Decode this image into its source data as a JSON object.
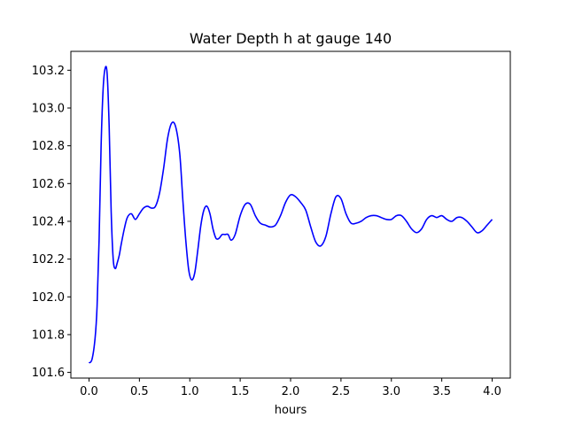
{
  "chart_data": {
    "type": "line",
    "title": "Water Depth h at gauge 140",
    "xlabel": "hours",
    "ylabel": "",
    "xlim": [
      -0.18,
      4.18
    ],
    "ylim": [
      101.57,
      103.3
    ],
    "xticks": [
      0.0,
      0.5,
      1.0,
      1.5,
      2.0,
      2.5,
      3.0,
      3.5,
      4.0
    ],
    "xtick_labels": [
      "0.0",
      "0.5",
      "1.0",
      "1.5",
      "2.0",
      "2.5",
      "3.0",
      "3.5",
      "4.0"
    ],
    "yticks": [
      101.6,
      101.8,
      102.0,
      102.2,
      102.4,
      102.6,
      102.8,
      103.0,
      103.2
    ],
    "ytick_labels": [
      "101.6",
      "101.8",
      "102.0",
      "102.2",
      "102.4",
      "102.6",
      "102.8",
      "103.0",
      "103.2"
    ],
    "grid": false,
    "series": [
      {
        "color": "#0000ff",
        "x": [
          0.0,
          0.03,
          0.06,
          0.08,
          0.1,
          0.12,
          0.14,
          0.16,
          0.18,
          0.2,
          0.22,
          0.24,
          0.26,
          0.28,
          0.3,
          0.32,
          0.35,
          0.38,
          0.42,
          0.46,
          0.5,
          0.54,
          0.58,
          0.62,
          0.66,
          0.7,
          0.74,
          0.78,
          0.82,
          0.86,
          0.9,
          0.93,
          0.96,
          0.99,
          1.02,
          1.05,
          1.08,
          1.11,
          1.14,
          1.17,
          1.2,
          1.23,
          1.26,
          1.29,
          1.32,
          1.35,
          1.38,
          1.41,
          1.45,
          1.5,
          1.55,
          1.6,
          1.65,
          1.7,
          1.75,
          1.8,
          1.85,
          1.9,
          1.95,
          2.0,
          2.05,
          2.1,
          2.15,
          2.2,
          2.25,
          2.3,
          2.35,
          2.4,
          2.45,
          2.5,
          2.55,
          2.6,
          2.65,
          2.7,
          2.75,
          2.8,
          2.85,
          2.9,
          2.95,
          3.0,
          3.05,
          3.1,
          3.15,
          3.2,
          3.25,
          3.3,
          3.35,
          3.4,
          3.45,
          3.5,
          3.55,
          3.6,
          3.65,
          3.7,
          3.75,
          3.8,
          3.85,
          3.9,
          3.95,
          4.0
        ],
        "y": [
          101.65,
          101.67,
          101.78,
          101.95,
          102.3,
          102.8,
          103.1,
          103.21,
          103.18,
          102.9,
          102.45,
          102.2,
          102.15,
          102.18,
          102.22,
          102.28,
          102.36,
          102.42,
          102.44,
          102.41,
          102.44,
          102.47,
          102.48,
          102.47,
          102.48,
          102.55,
          102.68,
          102.84,
          102.92,
          102.9,
          102.76,
          102.52,
          102.3,
          102.14,
          102.09,
          102.13,
          102.25,
          102.38,
          102.46,
          102.48,
          102.44,
          102.36,
          102.31,
          102.31,
          102.33,
          102.33,
          102.33,
          102.3,
          102.33,
          102.43,
          102.49,
          102.49,
          102.43,
          102.39,
          102.38,
          102.37,
          102.38,
          102.43,
          102.5,
          102.54,
          102.53,
          102.5,
          102.46,
          102.37,
          102.29,
          102.27,
          102.32,
          102.44,
          102.53,
          102.52,
          102.44,
          102.39,
          102.39,
          102.4,
          102.42,
          102.43,
          102.43,
          102.42,
          102.41,
          102.41,
          102.43,
          102.43,
          102.4,
          102.36,
          102.34,
          102.36,
          102.41,
          102.43,
          102.42,
          102.43,
          102.41,
          102.4,
          102.42,
          102.42,
          102.4,
          102.37,
          102.34,
          102.35,
          102.38,
          102.41
        ]
      }
    ]
  }
}
